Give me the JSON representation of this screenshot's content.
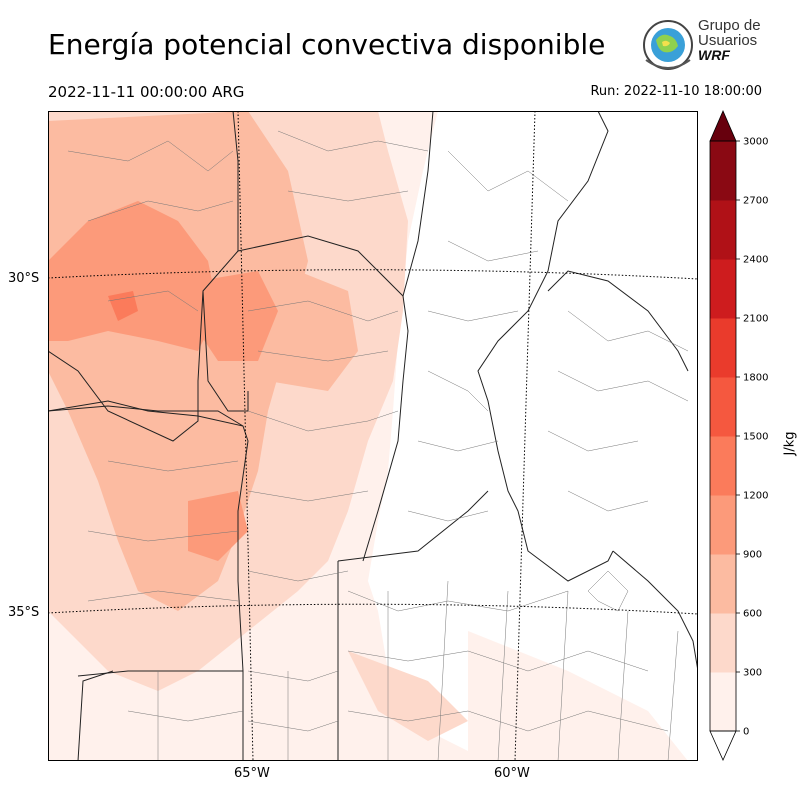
{
  "title": "Energía potencial convectiva disponible",
  "valid_time": "2022-11-11 00:00:00 ARG",
  "run_time": "Run: 2022-11-10 18:00:00",
  "logo": {
    "line1": "Grupo de",
    "line2": "Usuarios",
    "line3": "WRF",
    "icon": "wrf-globe-logo-icon"
  },
  "map": {
    "lat_labels": [
      "30°S",
      "35°S"
    ],
    "lon_labels": [
      "65°W",
      "60°W"
    ]
  },
  "colorbar": {
    "unit": "J/kg",
    "ticks": [
      "0",
      "300",
      "600",
      "900",
      "1200",
      "1500",
      "1800",
      "2100",
      "2400",
      "2700",
      "3000"
    ],
    "colors": [
      "#fff1ec",
      "#fdd9cb",
      "#fcbba1",
      "#fc9a7a",
      "#fb7b5b",
      "#f5583f",
      "#ea3b2c",
      "#ce1c1e",
      "#b01117",
      "#8a0913",
      "#67000d"
    ]
  }
}
